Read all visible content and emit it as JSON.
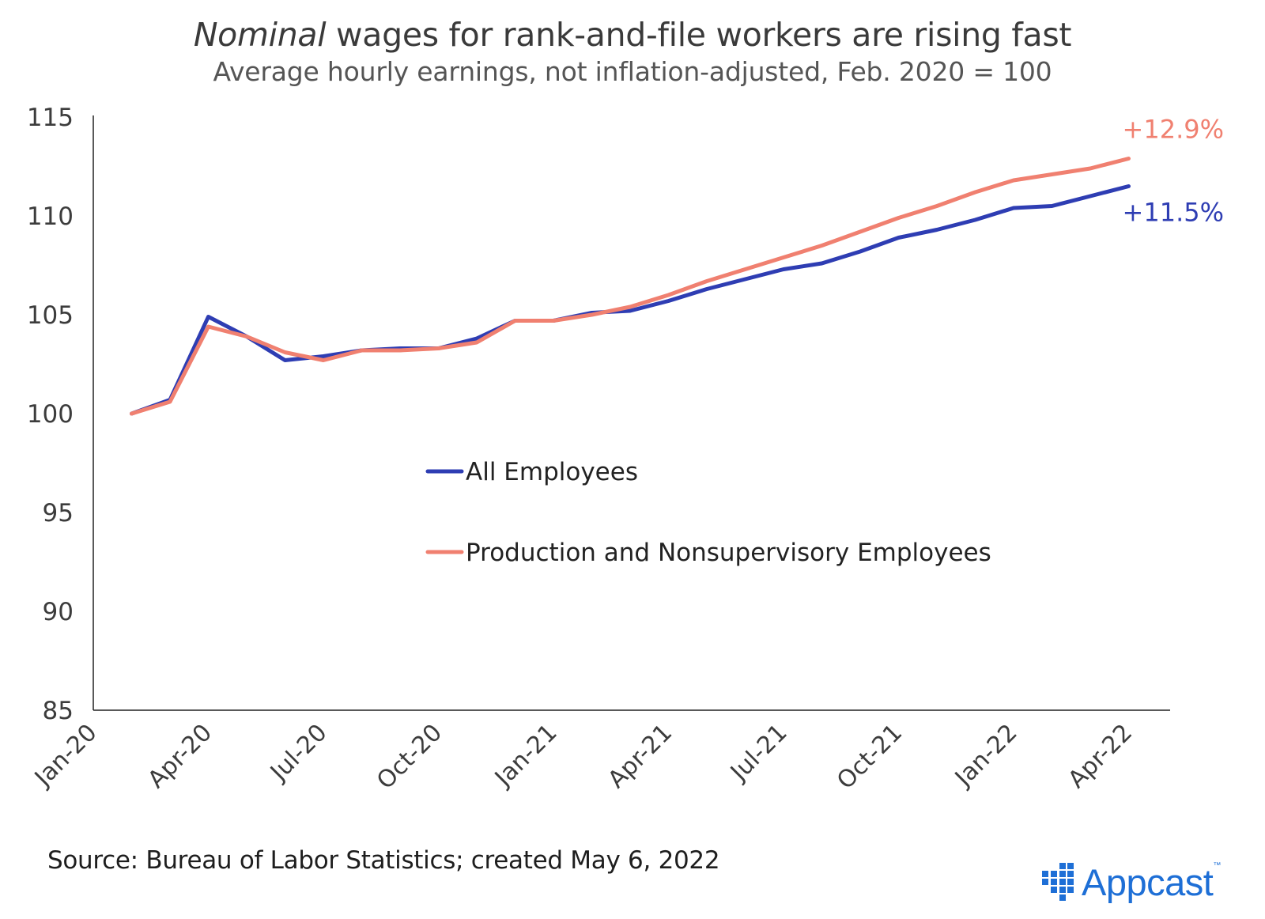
{
  "header": {
    "title_italic": "Nominal",
    "title_rest": "wages for rank-and-file workers are rising fast",
    "subtitle": "Average hourly earnings, not inflation-adjusted, Feb. 2020 = 100"
  },
  "footer": {
    "source": "Source: Bureau of Labor Statistics; created May 6, 2022",
    "logo_text": "Appcast",
    "logo_tm": "™"
  },
  "chart_data": {
    "type": "line",
    "title": "Nominal wages for rank-and-file workers are rising fast",
    "subtitle": "Average hourly earnings, not inflation-adjusted, Feb. 2020 = 100",
    "xlabel": "",
    "ylabel": "",
    "ylim": [
      85,
      115
    ],
    "yticks": [
      "115",
      "110",
      "105",
      "100",
      "95",
      "90",
      "85"
    ],
    "x_tick_labels": [
      "Jan-20",
      "Apr-20",
      "Jul-20",
      "Oct-20",
      "Jan-21",
      "Apr-21",
      "Jul-21",
      "Oct-21",
      "Jan-22",
      "Apr-22"
    ],
    "x": [
      "Feb-20",
      "Mar-20",
      "Apr-20",
      "May-20",
      "Jun-20",
      "Jul-20",
      "Aug-20",
      "Sep-20",
      "Oct-20",
      "Nov-20",
      "Dec-20",
      "Jan-21",
      "Feb-21",
      "Mar-21",
      "Apr-21",
      "May-21",
      "Jun-21",
      "Jul-21",
      "Aug-21",
      "Sep-21",
      "Oct-21",
      "Nov-21",
      "Dec-21",
      "Jan-22",
      "Feb-22",
      "Mar-22",
      "Apr-22"
    ],
    "series": [
      {
        "name": "All Employees",
        "color": "#2e3db3",
        "values": [
          100.0,
          100.7,
          104.9,
          103.9,
          102.7,
          102.9,
          103.2,
          103.3,
          103.3,
          103.8,
          104.7,
          104.7,
          105.1,
          105.2,
          105.7,
          106.3,
          106.8,
          107.3,
          107.6,
          108.2,
          108.9,
          109.3,
          109.8,
          110.4,
          110.5,
          111.0,
          111.5
        ],
        "end_label": "+11.5%"
      },
      {
        "name": "Production and Nonsupervisory Employees",
        "color": "#f08070",
        "values": [
          100.0,
          100.6,
          104.4,
          103.9,
          103.1,
          102.7,
          103.2,
          103.2,
          103.3,
          103.6,
          104.7,
          104.7,
          105.0,
          105.4,
          106.0,
          106.7,
          107.3,
          107.9,
          108.5,
          109.2,
          109.9,
          110.5,
          111.2,
          111.8,
          112.1,
          112.4,
          112.9
        ],
        "end_label": "+12.9%"
      }
    ],
    "legend_position": "center-left",
    "grid": false
  }
}
